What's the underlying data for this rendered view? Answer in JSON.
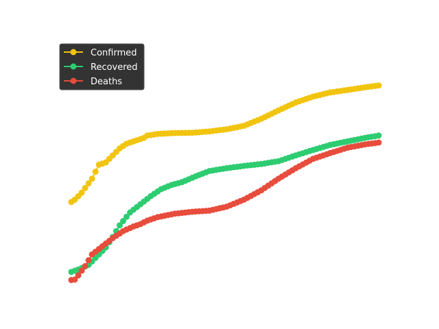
{
  "chart_data": {
    "type": "line",
    "title": "",
    "xlabel": "",
    "ylabel": "",
    "axes_visible": false,
    "grid": false,
    "legend_position": "top-left",
    "legend_style": "dark",
    "x_count": 90,
    "ylim": [
      0,
      1
    ],
    "series": [
      {
        "name": "Confirmed",
        "color": "#f1c40f",
        "anchors": [
          [
            0,
            0.345
          ],
          [
            1,
            0.355
          ],
          [
            3,
            0.385
          ],
          [
            6,
            0.445
          ],
          [
            8,
            0.505
          ],
          [
            10,
            0.515
          ],
          [
            12,
            0.545
          ],
          [
            14,
            0.575
          ],
          [
            16,
            0.595
          ],
          [
            19,
            0.61
          ],
          [
            21,
            0.62
          ],
          [
            22,
            0.63
          ],
          [
            25,
            0.637
          ],
          [
            30,
            0.641
          ],
          [
            35,
            0.642
          ],
          [
            40,
            0.648
          ],
          [
            45,
            0.657
          ],
          [
            50,
            0.672
          ],
          [
            55,
            0.702
          ],
          [
            60,
            0.738
          ],
          [
            65,
            0.772
          ],
          [
            70,
            0.797
          ],
          [
            75,
            0.815
          ],
          [
            80,
            0.826
          ],
          [
            85,
            0.837
          ],
          [
            89,
            0.845
          ]
        ]
      },
      {
        "name": "Recovered",
        "color": "#2ecc71",
        "anchors": [
          [
            0,
            0.045
          ],
          [
            2,
            0.055
          ],
          [
            5,
            0.075
          ],
          [
            8,
            0.12
          ],
          [
            10,
            0.15
          ],
          [
            12,
            0.195
          ],
          [
            14,
            0.245
          ],
          [
            17,
            0.3
          ],
          [
            20,
            0.335
          ],
          [
            23,
            0.37
          ],
          [
            26,
            0.4
          ],
          [
            29,
            0.418
          ],
          [
            32,
            0.43
          ],
          [
            36,
            0.455
          ],
          [
            40,
            0.478
          ],
          [
            45,
            0.49
          ],
          [
            50,
            0.5
          ],
          [
            55,
            0.508
          ],
          [
            60,
            0.52
          ],
          [
            65,
            0.545
          ],
          [
            70,
            0.568
          ],
          [
            75,
            0.59
          ],
          [
            80,
            0.605
          ],
          [
            85,
            0.62
          ],
          [
            89,
            0.63
          ]
        ]
      },
      {
        "name": "Deaths",
        "color": "#e74c3c",
        "anchors": [
          [
            0,
            0.01
          ],
          [
            1,
            0.012
          ],
          [
            2,
            0.03
          ],
          [
            4,
            0.07
          ],
          [
            6,
            0.12
          ],
          [
            9,
            0.155
          ],
          [
            12,
            0.19
          ],
          [
            15,
            0.22
          ],
          [
            18,
            0.24
          ],
          [
            20,
            0.25
          ],
          [
            22,
            0.265
          ],
          [
            25,
            0.28
          ],
          [
            30,
            0.295
          ],
          [
            35,
            0.303
          ],
          [
            40,
            0.308
          ],
          [
            45,
            0.325
          ],
          [
            50,
            0.355
          ],
          [
            55,
            0.395
          ],
          [
            60,
            0.445
          ],
          [
            65,
            0.49
          ],
          [
            70,
            0.53
          ],
          [
            75,
            0.555
          ],
          [
            80,
            0.578
          ],
          [
            85,
            0.592
          ],
          [
            89,
            0.6
          ]
        ]
      }
    ]
  }
}
